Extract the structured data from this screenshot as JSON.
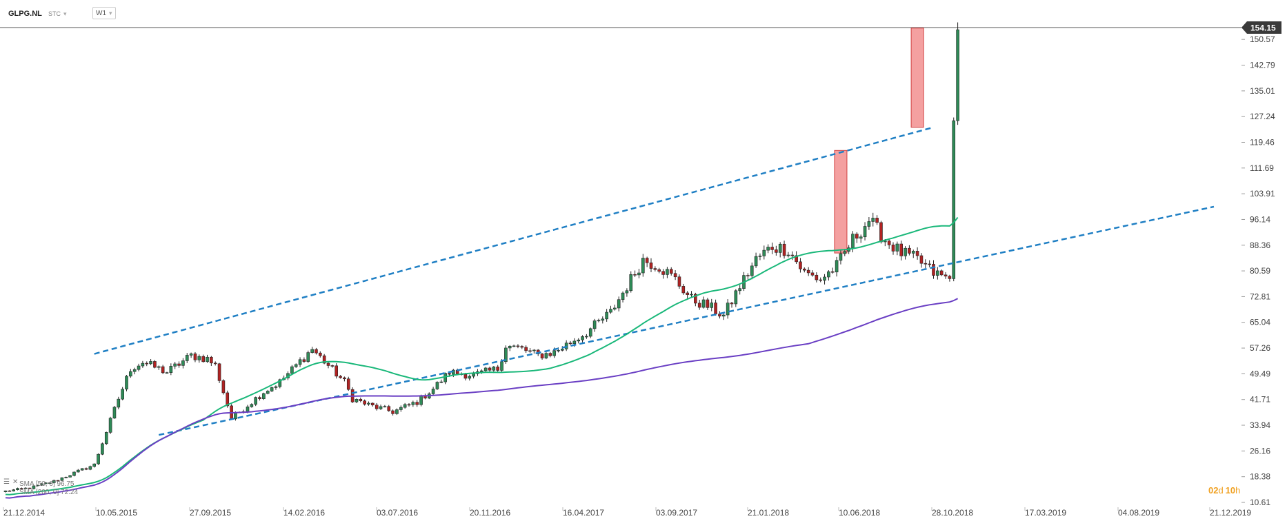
{
  "header": {
    "symbol": "GLPG.NL",
    "exchange": "STC",
    "timeframe": "W1"
  },
  "legend": {
    "icon": "lines-icon",
    "close_icon": "close-icon",
    "sma_fast": "SMA [50, 0] 96.75",
    "sma_slow": "SMA [200, 0] 72.24"
  },
  "countdown": {
    "days": "02",
    "days_unit": "d",
    "hours": "10",
    "hours_unit": "h"
  },
  "colors": {
    "bull": "#2e8b57",
    "bear": "#b22222",
    "sma_fast": "#1ab87a",
    "sma_slow": "#6a3fc4",
    "channel": "#1f7fc4",
    "highlight": "#f08080",
    "countdown": "#f0a020"
  },
  "chart_data": {
    "type": "candlestick",
    "y_ticks": [
      "10.61",
      "18.38",
      "26.16",
      "33.94",
      "41.71",
      "49.49",
      "57.26",
      "65.04",
      "72.81",
      "80.59",
      "88.36",
      "96.14",
      "103.91",
      "111.69",
      "119.46",
      "127.24",
      "135.01",
      "142.79",
      "150.57"
    ],
    "x_ticks": [
      "21.12.2014",
      "10.05.2015",
      "27.09.2015",
      "14.02.2016",
      "03.07.2016",
      "20.11.2016",
      "16.04.2017",
      "03.09.2017",
      "21.01.2018",
      "10.06.2018",
      "28.10.2018",
      "17.03.2019",
      "04.08.2019",
      "21.12.2019"
    ],
    "ylim": [
      10.61,
      154.15
    ],
    "last_price": "154.15",
    "candle_count": 237,
    "close_path": [
      [
        0,
        14
      ],
      [
        6,
        15
      ],
      [
        12,
        17
      ],
      [
        18,
        20
      ],
      [
        22,
        22
      ],
      [
        25,
        32
      ],
      [
        28,
        42
      ],
      [
        31,
        51
      ],
      [
        34,
        53
      ],
      [
        40,
        50
      ],
      [
        46,
        55
      ],
      [
        50,
        54
      ],
      [
        52,
        52
      ],
      [
        54,
        44
      ],
      [
        56,
        36
      ],
      [
        60,
        40
      ],
      [
        64,
        44
      ],
      [
        68,
        47
      ],
      [
        72,
        52
      ],
      [
        76,
        57
      ],
      [
        80,
        52
      ],
      [
        84,
        47
      ],
      [
        86,
        42
      ],
      [
        90,
        40
      ],
      [
        96,
        38
      ],
      [
        102,
        41
      ],
      [
        106,
        45
      ],
      [
        110,
        50
      ],
      [
        116,
        49
      ],
      [
        122,
        51
      ],
      [
        124,
        58
      ],
      [
        128,
        57
      ],
      [
        132,
        55
      ],
      [
        136,
        56
      ],
      [
        140,
        59
      ],
      [
        144,
        62
      ],
      [
        150,
        68
      ],
      [
        154,
        76
      ],
      [
        158,
        84
      ],
      [
        162,
        82
      ],
      [
        166,
        78
      ],
      [
        170,
        72
      ],
      [
        174,
        70
      ],
      [
        178,
        67
      ],
      [
        182,
        76
      ],
      [
        186,
        84
      ],
      [
        190,
        88
      ],
      [
        194,
        87
      ],
      [
        198,
        80
      ],
      [
        202,
        78
      ],
      [
        206,
        82
      ],
      [
        210,
        90
      ],
      [
        214,
        96
      ],
      [
        218,
        90
      ],
      [
        222,
        86
      ],
      [
        226,
        84
      ],
      [
        230,
        80
      ],
      [
        234,
        78
      ],
      [
        240,
        84
      ],
      [
        244,
        90
      ],
      [
        250,
        92
      ],
      [
        254,
        88
      ],
      [
        258,
        75
      ],
      [
        262,
        80
      ],
      [
        266,
        94
      ],
      [
        270,
        86
      ],
      [
        274,
        90
      ],
      [
        280,
        98
      ],
      [
        286,
        100
      ],
      [
        290,
        86
      ],
      [
        294,
        90
      ],
      [
        298,
        92
      ],
      [
        302,
        88
      ],
      [
        308,
        88
      ],
      [
        312,
        90
      ],
      [
        320,
        104
      ],
      [
        326,
        110
      ],
      [
        332,
        102
      ],
      [
        336,
        100
      ],
      [
        340,
        106
      ],
      [
        344,
        116
      ],
      [
        348,
        124
      ],
      [
        350,
        126
      ],
      [
        352,
        150
      ]
    ],
    "series": [
      {
        "name": "SMA [50, 0]",
        "start_value": 13.0,
        "last_value": 96.75
      },
      {
        "name": "SMA [200, 0]",
        "start_value": 12.0,
        "last_value": 72.24
      }
    ],
    "channel_lines": [
      {
        "from": [
          "10.05.2015",
          55.5
        ],
        "to": [
          "2019",
          124.0
        ]
      },
      {
        "from": [
          "27.09.2015",
          31.0
        ],
        "to": [
          "2020",
          100.0
        ]
      }
    ],
    "highlight_zones": [
      {
        "low": 86.0,
        "high": 117.0
      },
      {
        "low": 124.0,
        "high": 154.0
      }
    ]
  }
}
